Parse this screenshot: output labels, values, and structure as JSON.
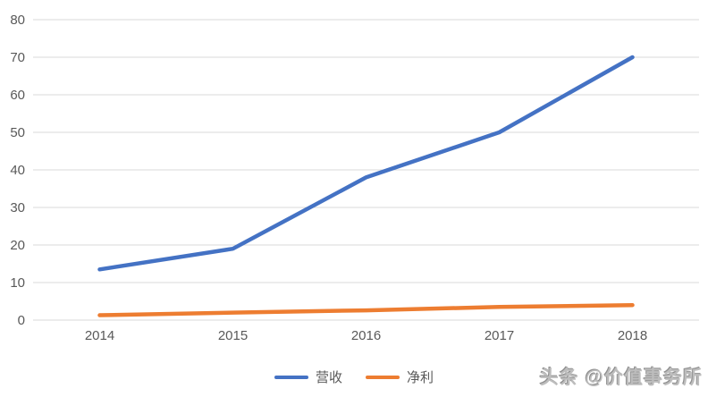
{
  "chart_data": {
    "type": "line",
    "categories": [
      "2014",
      "2015",
      "2016",
      "2017",
      "2018"
    ],
    "series": [
      {
        "name": "营收",
        "color": "#4472C4",
        "values": [
          13.5,
          19,
          38,
          50,
          70
        ]
      },
      {
        "name": "净利",
        "color": "#ED7D31",
        "values": [
          1.3,
          2,
          2.6,
          3.5,
          4
        ]
      }
    ],
    "title": "",
    "xlabel": "",
    "ylabel": "",
    "ylim": [
      0,
      80
    ],
    "ytick_interval": 10,
    "grid": "horizontal-only",
    "legend_position": "bottom-center"
  },
  "colors": {
    "background": "#FFFFFF",
    "gridline": "#D9D9D9",
    "axis_label": "#595959"
  },
  "watermark": {
    "text": "头条 @价值事务所"
  }
}
